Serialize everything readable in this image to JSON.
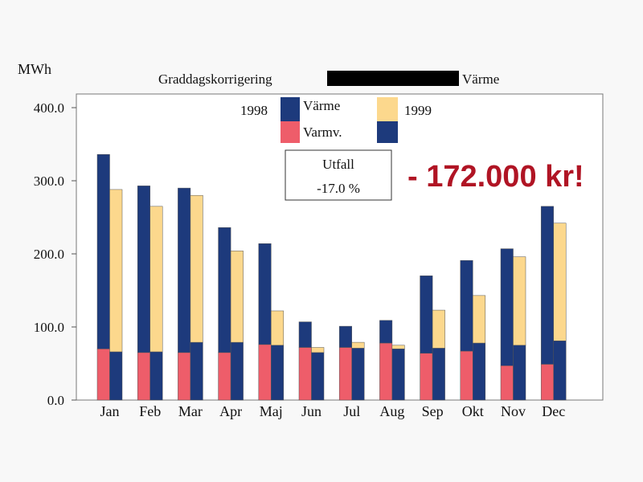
{
  "chart_data": {
    "type": "bar",
    "title": "Graddagskorrigering",
    "title_suffix": "Värme",
    "ylabel": "MWh",
    "ylim": [
      0,
      400
    ],
    "yticks": [
      "0.0",
      "100.0",
      "200.0",
      "300.0",
      "400.0"
    ],
    "grid": false,
    "categories": [
      "Jan",
      "Feb",
      "Mar",
      "Apr",
      "Maj",
      "Jun",
      "Jul",
      "Aug",
      "Sep",
      "Okt",
      "Nov",
      "Dec"
    ],
    "groups": [
      {
        "name": "1998",
        "stack": [
          {
            "name": "Varmv.",
            "color": "#ee5d6a",
            "values": [
              70,
              65,
              65,
              65,
              76,
              72,
              72,
              78,
              64,
              67,
              47,
              49
            ]
          },
          {
            "name": "Värme",
            "color": "#1d3a7c",
            "values": [
              266,
              228,
              225,
              171,
              138,
              35,
              29,
              31,
              106,
              124,
              160,
              216
            ]
          }
        ]
      },
      {
        "name": "1999",
        "stack": [
          {
            "name": "Varmv.",
            "color": "#1d3a7c",
            "values": [
              66,
              66,
              79,
              79,
              75,
              65,
              71,
              70,
              71,
              78,
              75,
              81
            ]
          },
          {
            "name": "Värme",
            "color": "#fcd88d",
            "values": [
              222,
              199,
              201,
              125,
              47,
              7,
              8,
              5,
              52,
              65,
              121,
              161
            ]
          }
        ]
      }
    ],
    "legend": {
      "placement": "top",
      "year_1998": "1998",
      "year_1999": "1999",
      "varme": "Värme",
      "varmv": "Varmv."
    },
    "annotation_box": {
      "line1": "Utfall",
      "line2": "-17.0 %"
    },
    "annotation_text": "- 172.000 kr!",
    "colors": {
      "navy": "#1d3a7c",
      "pink": "#ee5d6a",
      "cream": "#fcd88d",
      "red_text": "#b01424"
    }
  }
}
